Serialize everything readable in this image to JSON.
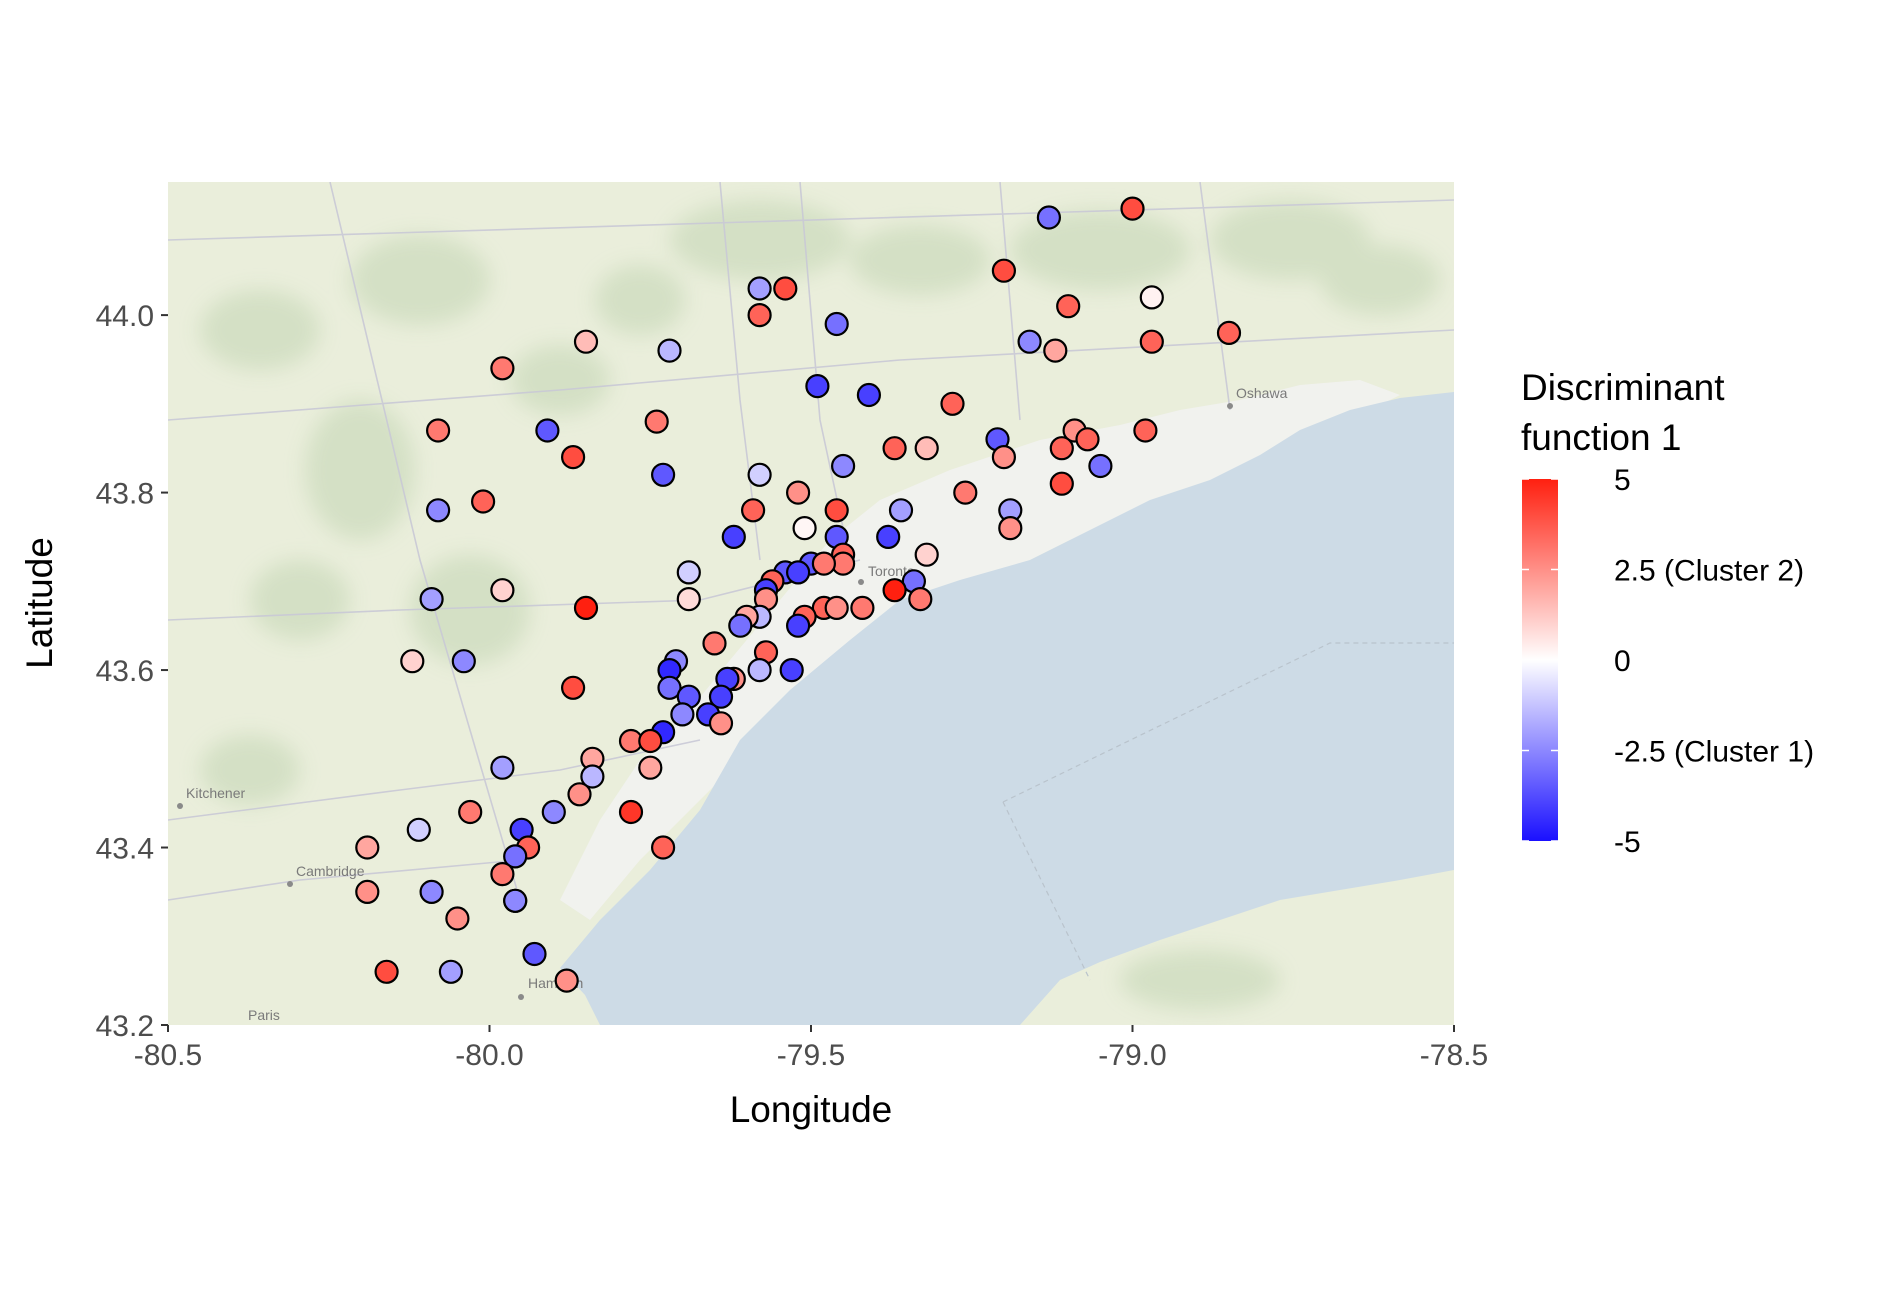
{
  "chart_data": {
    "type": "scatter",
    "title": "",
    "xlabel": "Longitude",
    "ylabel": "Latitude",
    "xlim": [
      -80.5,
      -78.5
    ],
    "ylim": [
      43.2,
      44.15
    ],
    "x_ticks": [
      -80.5,
      -80.0,
      -79.5,
      -79.0,
      -78.5
    ],
    "x_tick_labels": [
      "-80.5",
      "-80.0",
      "-79.5",
      "-79.0",
      "-78.5"
    ],
    "y_ticks": [
      43.2,
      43.4,
      43.6,
      43.8,
      44.0
    ],
    "y_tick_labels": [
      "43.2",
      "43.4",
      "43.6",
      "43.8",
      "44.0"
    ],
    "grid": false,
    "background": "basemap",
    "basemap_labels": [
      "Toronto",
      "Oshawa",
      "Kitchener",
      "Cambridge",
      "Hamilton",
      "Paris"
    ],
    "colors": {
      "low": "#1a10ff",
      "mid": "#ffffff",
      "high": "#ff2010",
      "land": "#eaeedb",
      "water": "#cddbe6",
      "forest": "#d2dfc3",
      "urban": "#f0f0ee"
    },
    "color_scale": {
      "name": "Discriminant\nfunction 1",
      "title_lines": [
        "Discriminant",
        "function 1"
      ],
      "range": [
        -5,
        5
      ],
      "breaks": [
        5,
        2.5,
        0,
        -2.5,
        -5
      ],
      "break_labels": [
        "5",
        "2.5 (Cluster 2)",
        "0",
        "-2.5 (Cluster 1)",
        "-5"
      ],
      "legend_position": "right"
    },
    "points": [
      {
        "x": -79.88,
        "y": 43.25,
        "v": 2.5
      },
      {
        "x": -79.0,
        "y": 44.12,
        "v": 4.0
      },
      {
        "x": -79.13,
        "y": 44.11,
        "v": -3.0
      },
      {
        "x": -79.2,
        "y": 44.05,
        "v": 4.0
      },
      {
        "x": -79.58,
        "y": 44.03,
        "v": -2.0
      },
      {
        "x": -79.54,
        "y": 44.03,
        "v": 4.0
      },
      {
        "x": -78.97,
        "y": 44.02,
        "v": 0.3
      },
      {
        "x": -79.1,
        "y": 44.01,
        "v": 3.5
      },
      {
        "x": -79.58,
        "y": 44.0,
        "v": 3.5
      },
      {
        "x": -79.46,
        "y": 43.99,
        "v": -3.0
      },
      {
        "x": -78.85,
        "y": 43.98,
        "v": 3.5
      },
      {
        "x": -79.16,
        "y": 43.97,
        "v": -2.5
      },
      {
        "x": -78.97,
        "y": 43.97,
        "v": 3.5
      },
      {
        "x": -79.85,
        "y": 43.97,
        "v": 1.5
      },
      {
        "x": -79.12,
        "y": 43.96,
        "v": 2.0
      },
      {
        "x": -79.72,
        "y": 43.96,
        "v": -1.5
      },
      {
        "x": -79.98,
        "y": 43.94,
        "v": 3.0
      },
      {
        "x": -79.49,
        "y": 43.92,
        "v": -4.0
      },
      {
        "x": -79.41,
        "y": 43.91,
        "v": -4.0
      },
      {
        "x": -79.28,
        "y": 43.9,
        "v": 3.5
      },
      {
        "x": -79.74,
        "y": 43.88,
        "v": 3.0
      },
      {
        "x": -80.08,
        "y": 43.87,
        "v": 3.0
      },
      {
        "x": -79.91,
        "y": 43.87,
        "v": -3.5
      },
      {
        "x": -78.98,
        "y": 43.87,
        "v": 3.5
      },
      {
        "x": -79.09,
        "y": 43.87,
        "v": 2.5
      },
      {
        "x": -79.21,
        "y": 43.86,
        "v": -3.5
      },
      {
        "x": -79.07,
        "y": 43.86,
        "v": 3.5
      },
      {
        "x": -79.11,
        "y": 43.85,
        "v": 3.5
      },
      {
        "x": -79.37,
        "y": 43.85,
        "v": 3.5
      },
      {
        "x": -79.32,
        "y": 43.85,
        "v": 1.5
      },
      {
        "x": -79.2,
        "y": 43.84,
        "v": 2.5
      },
      {
        "x": -79.87,
        "y": 43.84,
        "v": 4.0
      },
      {
        "x": -79.45,
        "y": 43.83,
        "v": -2.5
      },
      {
        "x": -79.05,
        "y": 43.83,
        "v": -3.0
      },
      {
        "x": -79.58,
        "y": 43.82,
        "v": -1.0
      },
      {
        "x": -79.73,
        "y": 43.82,
        "v": -3.5
      },
      {
        "x": -79.11,
        "y": 43.81,
        "v": 4.0
      },
      {
        "x": -79.52,
        "y": 43.8,
        "v": 2.5
      },
      {
        "x": -79.26,
        "y": 43.8,
        "v": 3.0
      },
      {
        "x": -80.01,
        "y": 43.79,
        "v": 3.5
      },
      {
        "x": -80.08,
        "y": 43.78,
        "v": -2.5
      },
      {
        "x": -79.59,
        "y": 43.78,
        "v": 3.5
      },
      {
        "x": -79.46,
        "y": 43.78,
        "v": 4.0
      },
      {
        "x": -79.19,
        "y": 43.78,
        "v": -2.0
      },
      {
        "x": -79.36,
        "y": 43.78,
        "v": -2.0
      },
      {
        "x": -79.51,
        "y": 43.76,
        "v": 0.2
      },
      {
        "x": -79.19,
        "y": 43.76,
        "v": 2.5
      },
      {
        "x": -79.62,
        "y": 43.75,
        "v": -4.0
      },
      {
        "x": -79.46,
        "y": 43.75,
        "v": -3.5
      },
      {
        "x": -79.38,
        "y": 43.75,
        "v": -4.0
      },
      {
        "x": -79.32,
        "y": 43.73,
        "v": 1.0
      },
      {
        "x": -79.45,
        "y": 43.73,
        "v": 3.5
      },
      {
        "x": -79.45,
        "y": 43.72,
        "v": 3.0
      },
      {
        "x": -79.54,
        "y": 43.71,
        "v": -3.5
      },
      {
        "x": -79.5,
        "y": 43.72,
        "v": -3.5
      },
      {
        "x": -79.48,
        "y": 43.72,
        "v": 3.0
      },
      {
        "x": -79.52,
        "y": 43.71,
        "v": -4.0
      },
      {
        "x": -79.69,
        "y": 43.71,
        "v": -1.0
      },
      {
        "x": -79.56,
        "y": 43.7,
        "v": 3.5
      },
      {
        "x": -79.34,
        "y": 43.7,
        "v": -3.0
      },
      {
        "x": -79.57,
        "y": 43.69,
        "v": -4.0
      },
      {
        "x": -79.98,
        "y": 43.69,
        "v": 1.0
      },
      {
        "x": -80.09,
        "y": 43.68,
        "v": -2.0
      },
      {
        "x": -79.37,
        "y": 43.69,
        "v": 5.0
      },
      {
        "x": -79.33,
        "y": 43.68,
        "v": 3.0
      },
      {
        "x": -79.69,
        "y": 43.68,
        "v": 0.8
      },
      {
        "x": -79.57,
        "y": 43.68,
        "v": 2.5
      },
      {
        "x": -79.48,
        "y": 43.67,
        "v": 3.5
      },
      {
        "x": -79.46,
        "y": 43.67,
        "v": 2.5
      },
      {
        "x": -79.42,
        "y": 43.67,
        "v": 3.0
      },
      {
        "x": -79.85,
        "y": 43.67,
        "v": 5.0
      },
      {
        "x": -79.58,
        "y": 43.66,
        "v": -1.5
      },
      {
        "x": -79.51,
        "y": 43.66,
        "v": 3.5
      },
      {
        "x": -79.6,
        "y": 43.66,
        "v": 2.0
      },
      {
        "x": -79.52,
        "y": 43.65,
        "v": -4.0
      },
      {
        "x": -79.61,
        "y": 43.65,
        "v": -3.0
      },
      {
        "x": -79.65,
        "y": 43.63,
        "v": 3.0
      },
      {
        "x": -79.57,
        "y": 43.62,
        "v": 3.5
      },
      {
        "x": -79.71,
        "y": 43.61,
        "v": -2.5
      },
      {
        "x": -80.12,
        "y": 43.61,
        "v": 1.0
      },
      {
        "x": -80.04,
        "y": 43.61,
        "v": -2.5
      },
      {
        "x": -79.58,
        "y": 43.6,
        "v": -1.5
      },
      {
        "x": -79.53,
        "y": 43.6,
        "v": -4.0
      },
      {
        "x": -79.72,
        "y": 43.6,
        "v": -4.5
      },
      {
        "x": -79.62,
        "y": 43.59,
        "v": 2.5
      },
      {
        "x": -79.63,
        "y": 43.59,
        "v": -4.0
      },
      {
        "x": -79.87,
        "y": 43.58,
        "v": 4.0
      },
      {
        "x": -79.72,
        "y": 43.58,
        "v": -3.0
      },
      {
        "x": -79.69,
        "y": 43.57,
        "v": -3.5
      },
      {
        "x": -79.64,
        "y": 43.57,
        "v": -4.0
      },
      {
        "x": -79.66,
        "y": 43.55,
        "v": -4.0
      },
      {
        "x": -79.7,
        "y": 43.55,
        "v": -2.5
      },
      {
        "x": -79.64,
        "y": 43.54,
        "v": 2.5
      },
      {
        "x": -79.73,
        "y": 43.53,
        "v": -4.5
      },
      {
        "x": -79.78,
        "y": 43.52,
        "v": 3.0
      },
      {
        "x": -79.75,
        "y": 43.52,
        "v": 4.0
      },
      {
        "x": -79.84,
        "y": 43.5,
        "v": 2.0
      },
      {
        "x": -79.75,
        "y": 43.49,
        "v": 2.0
      },
      {
        "x": -79.98,
        "y": 43.49,
        "v": -2.0
      },
      {
        "x": -79.84,
        "y": 43.48,
        "v": -1.5
      },
      {
        "x": -79.86,
        "y": 43.46,
        "v": 2.5
      },
      {
        "x": -79.78,
        "y": 43.44,
        "v": 4.5
      },
      {
        "x": -80.03,
        "y": 43.44,
        "v": 3.0
      },
      {
        "x": -79.9,
        "y": 43.44,
        "v": -2.5
      },
      {
        "x": -80.11,
        "y": 43.42,
        "v": -1.0
      },
      {
        "x": -79.95,
        "y": 43.42,
        "v": -4.0
      },
      {
        "x": -79.73,
        "y": 43.4,
        "v": 3.5
      },
      {
        "x": -80.19,
        "y": 43.4,
        "v": 2.0
      },
      {
        "x": -79.94,
        "y": 43.4,
        "v": 3.5
      },
      {
        "x": -79.96,
        "y": 43.39,
        "v": -3.0
      },
      {
        "x": -79.98,
        "y": 43.37,
        "v": 3.0
      },
      {
        "x": -80.19,
        "y": 43.35,
        "v": 2.5
      },
      {
        "x": -80.09,
        "y": 43.35,
        "v": -2.5
      },
      {
        "x": -79.96,
        "y": 43.34,
        "v": 1.5
      },
      {
        "x": -79.96,
        "y": 43.34,
        "v": -2.5
      },
      {
        "x": -80.05,
        "y": 43.32,
        "v": 2.5
      },
      {
        "x": -79.93,
        "y": 43.28,
        "v": -3.5
      },
      {
        "x": -80.16,
        "y": 43.26,
        "v": 4.0
      },
      {
        "x": -80.06,
        "y": 43.26,
        "v": -2.0
      }
    ]
  }
}
